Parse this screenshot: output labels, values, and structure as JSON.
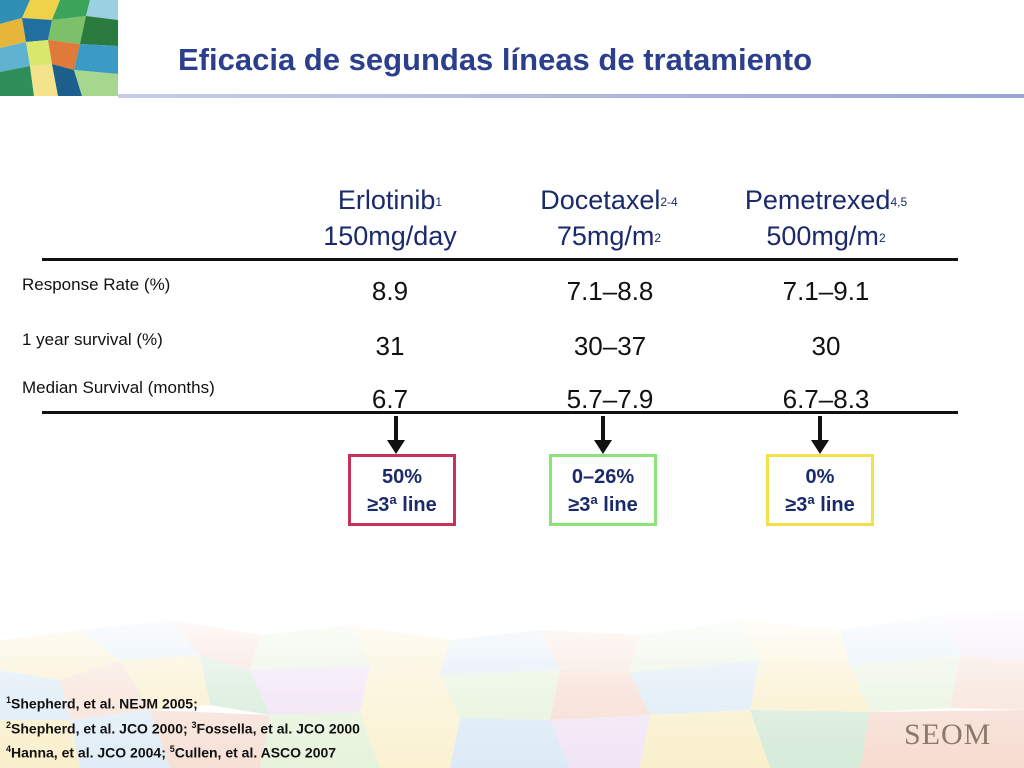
{
  "title": "Eficacia de segundas líneas de tratamiento",
  "columns": [
    {
      "name": "Erlotinib",
      "ref": "1",
      "dose": "150mg/day",
      "dose_sup": ""
    },
    {
      "name": "Docetaxel",
      "ref": "2-4",
      "dose": "75mg/m",
      "dose_sup": "2"
    },
    {
      "name": "Pemetrexed",
      "ref": "4,5",
      "dose": "500mg/m",
      "dose_sup": "2"
    }
  ],
  "rows": [
    {
      "label": "Response Rate (%)",
      "values": [
        "8.9",
        "7.1–8.8",
        "7.1–9.1"
      ]
    },
    {
      "label": "1 year survival (%)",
      "values": [
        "31",
        "30–37",
        "30"
      ]
    },
    {
      "label": "Median Survival (months)",
      "values": [
        "6.7",
        "5.7–7.9",
        "6.7–8.3"
      ]
    }
  ],
  "boxes": [
    {
      "pct": "50%",
      "line": "≥3ª line",
      "color": "#c8325a"
    },
    {
      "pct": "0–26%",
      "line": "≥3ª line",
      "color": "#8ee27a"
    },
    {
      "pct": "0%",
      "line": "≥3ª line",
      "color": "#f2e14a"
    }
  ],
  "footnotes": [
    {
      "refs": [
        "1"
      ],
      "texts": [
        "Shepherd, et al. NEJM 2005;"
      ]
    },
    {
      "refs": [
        "2",
        "3"
      ],
      "texts": [
        "Shepherd, et al. JCO 2000; ",
        "Fossella, et al. JCO 2000"
      ]
    },
    {
      "refs": [
        "4",
        "5"
      ],
      "texts": [
        "Hanna, et al. JCO 2004; ",
        "Cullen, et al. ASCO 2007"
      ]
    }
  ],
  "brand": "SEOM"
}
